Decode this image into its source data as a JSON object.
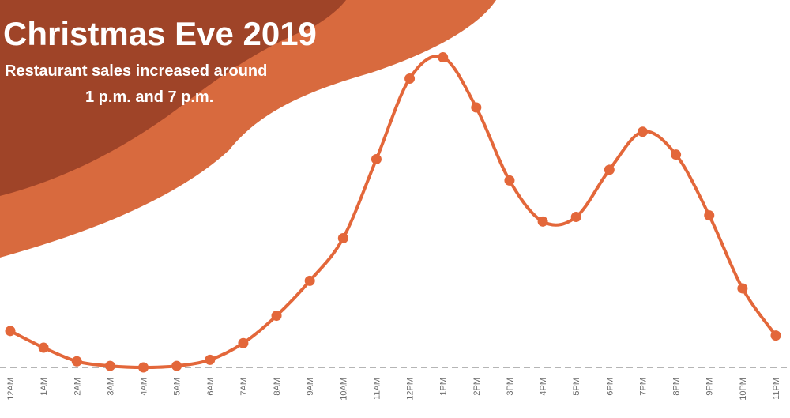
{
  "colors": {
    "line": "#e3673a",
    "marker": "#e3673a",
    "blob_dark": "#9f4428",
    "blob_light": "#d86a3e",
    "baseline": "#b5b5b5",
    "title_text": "#ffffff"
  },
  "chart_data": {
    "type": "line",
    "title": "Christmas Eve 2019",
    "subtitle_lines": [
      "Restaurant sales increased around",
      "1 p.m. and 7 p.m."
    ],
    "xlabel": "",
    "ylabel": "",
    "grid": false,
    "legend": "none",
    "y_axis_labels": false,
    "categories": [
      "12AM",
      "1AM",
      "2AM",
      "3AM",
      "4AM",
      "5AM",
      "6AM",
      "7AM",
      "8AM",
      "9AM",
      "10AM",
      "11AM",
      "12PM",
      "1PM",
      "2PM",
      "3PM",
      "4PM",
      "5PM",
      "6PM",
      "7PM",
      "8PM",
      "9PM",
      "10PM",
      "11PM"
    ],
    "values": [
      12,
      6.5,
      2,
      0.5,
      0,
      0.5,
      2.5,
      8,
      17,
      28.5,
      42.5,
      68.5,
      95,
      102,
      85.5,
      61.5,
      48,
      49.5,
      65,
      77.5,
      70,
      50,
      26,
      10.5
    ],
    "ylim": [
      0,
      105
    ]
  }
}
